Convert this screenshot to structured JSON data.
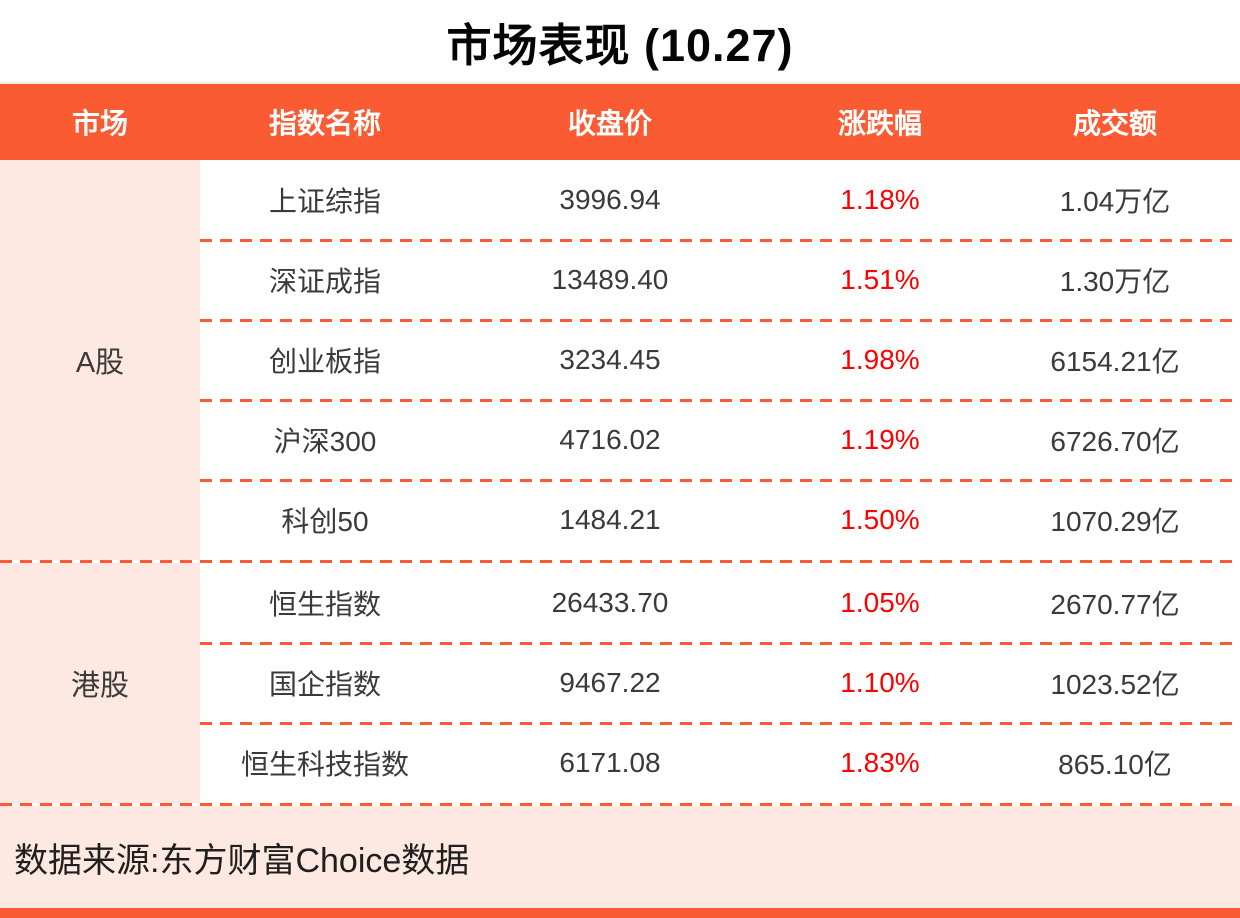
{
  "colors": {
    "accent": "#fa5b32",
    "pink": "#fde9e1",
    "red": "#fe0000",
    "text": "#3a3a3a"
  },
  "chart_data": {
    "type": "table",
    "title": "市场表现 (10.27)",
    "columns": [
      "市场",
      "指数名称",
      "收盘价",
      "涨跌幅",
      "成交额"
    ],
    "groups": [
      {
        "market": "A股",
        "rows": [
          {
            "name": "上证综指",
            "close": "3996.94",
            "change": "1.18%",
            "turnover": "1.04万亿"
          },
          {
            "name": "深证成指",
            "close": "13489.40",
            "change": "1.51%",
            "turnover": "1.30万亿"
          },
          {
            "name": "创业板指",
            "close": "3234.45",
            "change": "1.98%",
            "turnover": "6154.21亿"
          },
          {
            "name": "沪深300",
            "close": "4716.02",
            "change": "1.19%",
            "turnover": "6726.70亿"
          },
          {
            "name": "科创50",
            "close": "1484.21",
            "change": "1.50%",
            "turnover": "1070.29亿"
          }
        ]
      },
      {
        "market": "港股",
        "rows": [
          {
            "name": "恒生指数",
            "close": "26433.70",
            "change": "1.05%",
            "turnover": "2670.77亿"
          },
          {
            "name": "国企指数",
            "close": "9467.22",
            "change": "1.10%",
            "turnover": "1023.52亿"
          },
          {
            "name": "恒生科技指数",
            "close": "6171.08",
            "change": "1.83%",
            "turnover": "865.10亿"
          }
        ]
      }
    ],
    "change_color_note": "positive changes shown in red",
    "source": "数据来源:东方财富Choice数据"
  }
}
